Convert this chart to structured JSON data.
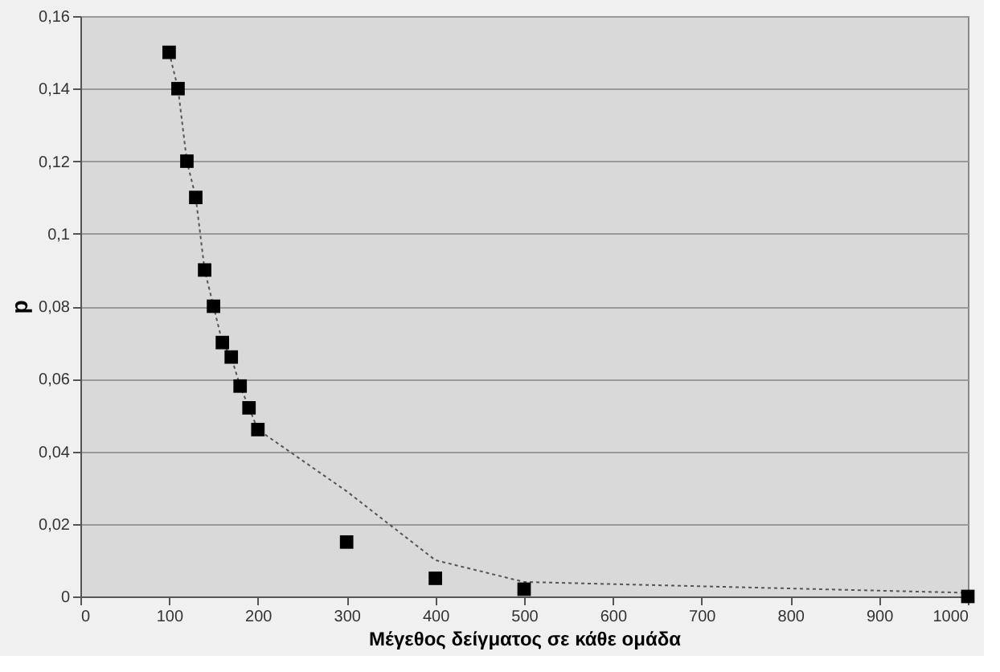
{
  "chart_data": {
    "type": "scatter",
    "xlabel": "Μέγεθος δείγματος σε κάθε ομάδα",
    "ylabel": "p",
    "xlim": [
      0,
      1000
    ],
    "xticks": [
      0,
      100,
      200,
      300,
      400,
      500,
      600,
      700,
      800,
      900,
      1000
    ],
    "ylim": [
      0,
      0.16
    ],
    "yticks": [
      {
        "value": 0,
        "label": "0"
      },
      {
        "value": 0.02,
        "label": "0,02"
      },
      {
        "value": 0.04,
        "label": "0,04"
      },
      {
        "value": 0.06,
        "label": "0,06"
      },
      {
        "value": 0.08,
        "label": "0,08"
      },
      {
        "value": 0.1,
        "label": "0,1"
      },
      {
        "value": 0.12,
        "label": "0,12"
      },
      {
        "value": 0.14,
        "label": "0,14"
      },
      {
        "value": 0.16,
        "label": "0,16"
      }
    ],
    "grid": "y",
    "series": [
      {
        "color": "#000000",
        "marker": "square",
        "x": [
          100,
          110,
          120,
          130,
          140,
          150,
          160,
          170,
          180,
          190,
          200,
          300,
          400,
          500,
          1000
        ],
        "values": [
          0.15,
          0.14,
          0.12,
          0.11,
          0.09,
          0.08,
          0.07,
          0.066,
          0.058,
          0.052,
          0.046,
          0.015,
          0.005,
          0.002,
          0.0
        ]
      },
      {
        "type": "line",
        "color": "#555555",
        "line_style": "dotted",
        "marker": "none",
        "x": [
          100,
          110,
          120,
          130,
          140,
          150,
          160,
          170,
          180,
          190,
          200,
          300,
          400,
          500,
          1000
        ],
        "values": [
          0.15,
          0.14,
          0.12,
          0.11,
          0.09,
          0.08,
          0.07,
          0.066,
          0.058,
          0.052,
          0.046,
          0.029,
          0.01,
          0.004,
          0.001
        ]
      }
    ]
  }
}
